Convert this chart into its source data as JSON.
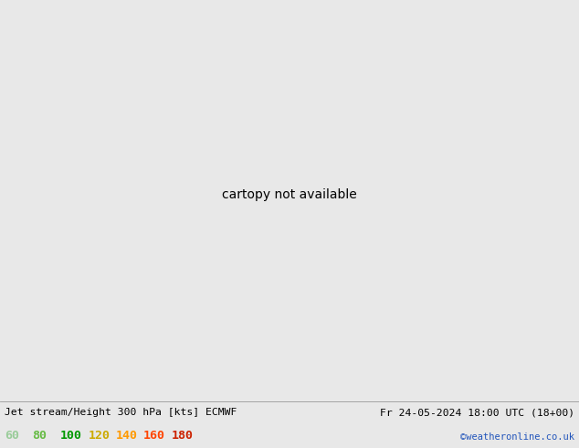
{
  "title_left": "Jet stream/Height 300 hPa [kts] ECMWF",
  "title_right": "Fr 24-05-2024 18:00 UTC (18+00)",
  "credit": "©weatheronline.co.uk",
  "legend_values": [
    60,
    80,
    100,
    120,
    140,
    160,
    180
  ],
  "legend_text_colors": [
    "#99cc99",
    "#66bb44",
    "#009900",
    "#ccaa00",
    "#ff9900",
    "#ff4400",
    "#cc2200"
  ],
  "bg_color": "#e8e8e8",
  "figsize": [
    6.34,
    4.9
  ],
  "dpi": 100,
  "map_extent": [
    -80,
    60,
    20,
    78
  ],
  "shade_levels": [
    60,
    80,
    100,
    120,
    140,
    160,
    180
  ],
  "shade_colors": [
    "#c8eec8",
    "#99dd77",
    "#44bb22",
    "#ddcc00",
    "#ff9900",
    "#ff4400",
    "#cc2200"
  ],
  "ocean_color": "#dddddd",
  "land_color": "#d8eed8",
  "coastline_color": "#aaaaaa",
  "contour_color": "#000000",
  "contour_lw": 1.3
}
